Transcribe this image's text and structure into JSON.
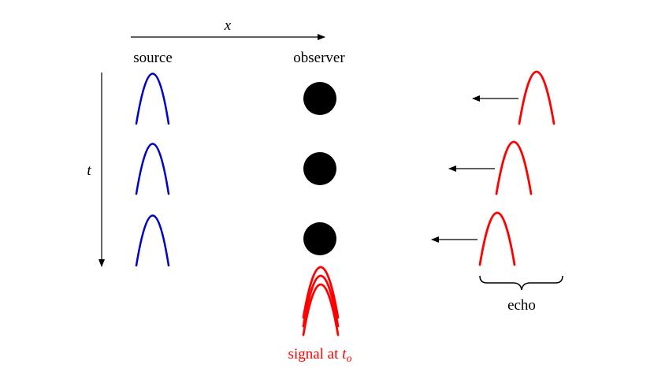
{
  "labels": {
    "x_axis": "x",
    "t_axis": "t",
    "source": "source",
    "observer": "observer",
    "echo": "echo",
    "signal_prefix": "signal at ",
    "signal_var": "t",
    "signal_sub": "o"
  },
  "colors": {
    "source_pulse": "#0000cc",
    "echo_pulse": "#ff0000",
    "observer": "#000000",
    "axis": "#000000",
    "signal_label": "#ff0000"
  },
  "rows": 3
}
